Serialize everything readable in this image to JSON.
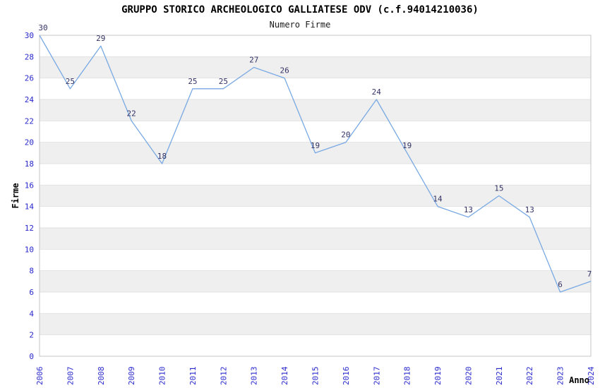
{
  "title": "GRUPPO STORICO ARCHEOLOGICO GALLIATESE ODV (c.f.94014210036)",
  "subtitle": "Numero Firme",
  "chart_data": {
    "type": "line",
    "title": "GRUPPO STORICO ARCHEOLOGICO GALLIATESE ODV (c.f.94014210036)",
    "subtitle": "Numero Firme",
    "xlabel": "Anno",
    "ylabel": "Firme",
    "categories": [
      "2006",
      "2007",
      "2008",
      "2009",
      "2010",
      "2011",
      "2012",
      "2013",
      "2014",
      "2015",
      "2016",
      "2017",
      "2018",
      "2019",
      "2020",
      "2021",
      "2022",
      "2023",
      "2024"
    ],
    "series": [
      {
        "name": "Numero Firme",
        "values": [
          30,
          25,
          29,
          22,
          18,
          25,
          25,
          27,
          26,
          19,
          20,
          24,
          19,
          14,
          13,
          15,
          13,
          6,
          7
        ]
      }
    ],
    "ylim": [
      0,
      30
    ],
    "ytick_step": 2,
    "grid": "horizontal-bands",
    "legend": "none",
    "data_labels": true,
    "colors": {
      "line": "#79A9E3",
      "tick_label": "#2828CC",
      "data_label": "#333366",
      "band": "#EFEFEF",
      "gridline": "#E2E2E2",
      "plot_border": "#C6C6C6",
      "axis_title": "#000000",
      "background": "#FFFFFF"
    }
  }
}
